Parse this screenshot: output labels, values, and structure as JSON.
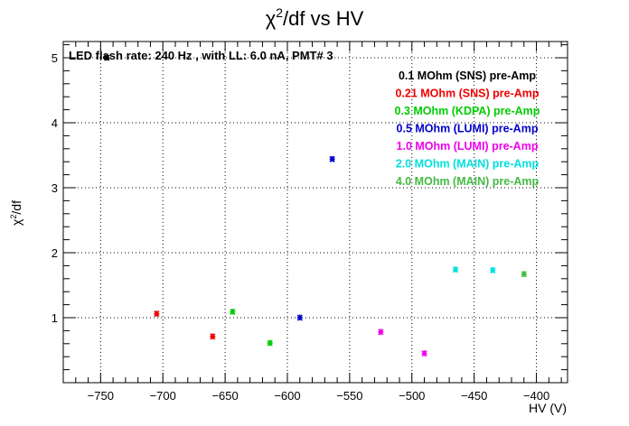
{
  "chart_data": {
    "type": "scatter",
    "title_base": "χ",
    "title_sup": "2",
    "title_rest": "/df vs HV",
    "annotation": "LED flash rate: 240 Hz , with LL: 6.0 nA, PMT# 3",
    "xlabel": "HV (V)",
    "ylabel_base": "χ",
    "ylabel_sup": "2",
    "ylabel_rest": "/df",
    "xlim": [
      -780,
      -375
    ],
    "ylim": [
      0.0,
      5.25
    ],
    "xticks": [
      -750,
      -700,
      -650,
      -600,
      -550,
      -500,
      -450,
      -400
    ],
    "xtick_labels": [
      "−750",
      "−700",
      "−650",
      "−600",
      "−550",
      "−500",
      "−450",
      "−400"
    ],
    "yticks": [
      1,
      2,
      3,
      4,
      5
    ],
    "ytick_labels": [
      "1",
      "2",
      "3",
      "4",
      "5"
    ],
    "grid": true,
    "legend_position": "top-right",
    "series": [
      {
        "name": "0.1 MOhm (SNS) pre-Amp",
        "color": "#000000",
        "points": [
          [
            -745,
            5.0
          ]
        ]
      },
      {
        "name": "0.21 MOhm (SNS) pre-Amp",
        "color": "#ee0000",
        "points": [
          [
            -705,
            1.06
          ],
          [
            -660,
            0.71
          ]
        ]
      },
      {
        "name": "0.3 MOhm (KDPA) pre-Amp",
        "color": "#00cc00",
        "points": [
          [
            -644,
            1.09
          ],
          [
            -614,
            0.61
          ]
        ]
      },
      {
        "name": "0.5 MOhm (LUMI) pre-Amp",
        "color": "#0000cc",
        "points": [
          [
            -590,
            1.0
          ],
          [
            -564,
            3.44
          ]
        ]
      },
      {
        "name": "1.0 MOhm (LUMI) pre-Amp",
        "color": "#ee00ee",
        "points": [
          [
            -525,
            0.78
          ],
          [
            -490,
            0.45
          ]
        ]
      },
      {
        "name": "2.0 MOhm (MAIN) pre-Amp",
        "color": "#00e0e0",
        "points": [
          [
            -465,
            1.74
          ],
          [
            -435,
            1.73
          ]
        ]
      },
      {
        "name": "4.0 MOhm (MAIN) pre-Amp",
        "color": "#44bb44",
        "points": [
          [
            -410,
            1.67
          ]
        ]
      }
    ]
  }
}
